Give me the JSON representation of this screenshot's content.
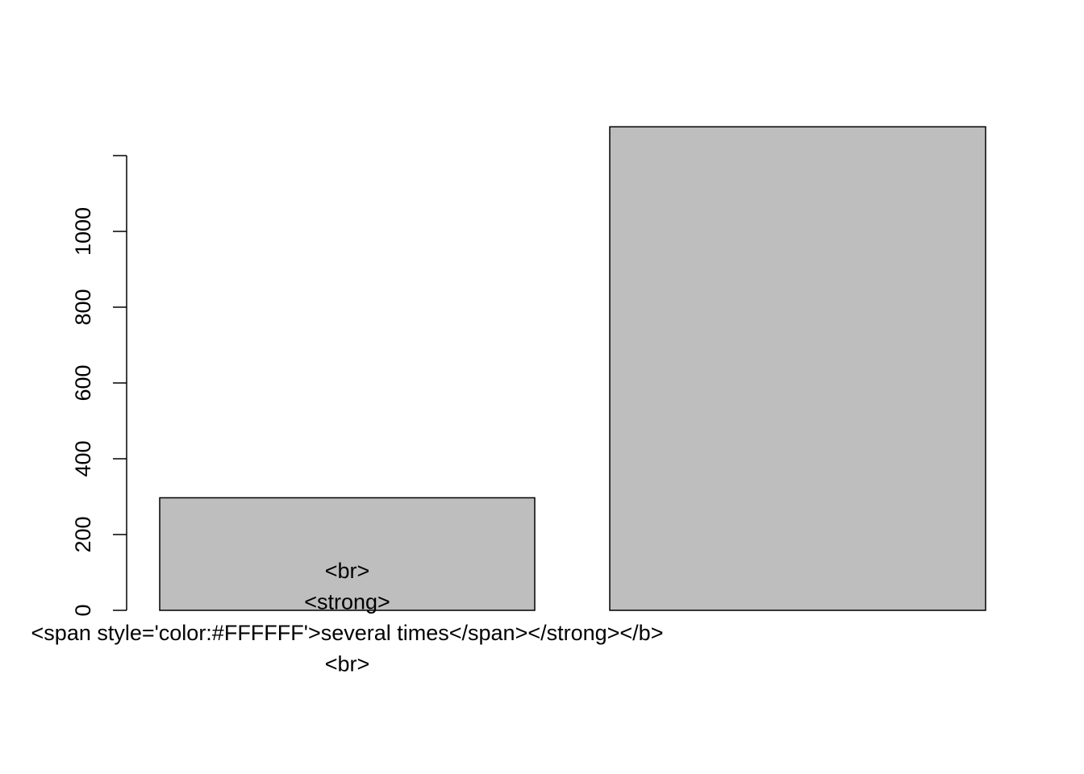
{
  "chart_data": {
    "type": "bar",
    "categories": [
      {
        "lines": [
          "<br>",
          "<strong>",
          "<span style='color:#FFFFFF'>several times</span></strong></b>",
          "<br>"
        ]
      },
      {
        "lines": []
      }
    ],
    "values": [
      297,
      1276
    ],
    "ylim": [
      0,
      1200
    ],
    "yticks": [
      0,
      200,
      400,
      600,
      800,
      1000
    ],
    "ytick_labels": [
      "0",
      "200",
      "400",
      "600",
      "800",
      "1000"
    ],
    "title": "",
    "xlabel": "",
    "ylabel": "",
    "bar_color": "#bebebe",
    "border_color": "#000000",
    "grid": false
  }
}
